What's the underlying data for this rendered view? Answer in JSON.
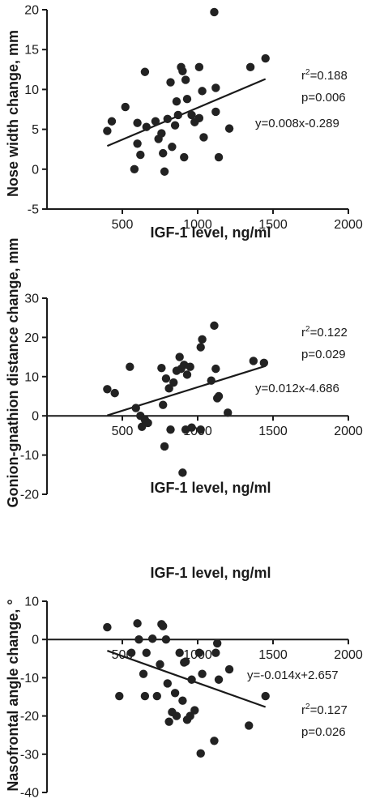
{
  "chart_data": [
    {
      "type": "scatter",
      "xlabel": "IGF-1 level, ng/ml",
      "ylabel": "Nose width change, mm",
      "xlim": [
        0,
        2000
      ],
      "ylim": [
        -5,
        20
      ],
      "x_ticks": [
        "500",
        "1000",
        "1500",
        "2000"
      ],
      "y_ticks": [
        "-5",
        "0",
        "5",
        "10",
        "15",
        "20"
      ],
      "x_axis_position": "bottom",
      "grid": false,
      "annotations": {
        "r2_prefix": "r",
        "r2_sup": "2",
        "r2_value": "=0.188",
        "p": "p=0.006",
        "equation": "y=0.008x-0.289"
      },
      "regression": {
        "slope": 0.008,
        "intercept": -0.289,
        "x_range": [
          400,
          1450
        ]
      },
      "points": [
        {
          "x": 400,
          "y": 4.8
        },
        {
          "x": 430,
          "y": 6.0
        },
        {
          "x": 520,
          "y": 7.8
        },
        {
          "x": 580,
          "y": 0.0
        },
        {
          "x": 600,
          "y": 5.8
        },
        {
          "x": 600,
          "y": 3.2
        },
        {
          "x": 620,
          "y": 1.8
        },
        {
          "x": 650,
          "y": 12.2
        },
        {
          "x": 660,
          "y": 5.3
        },
        {
          "x": 720,
          "y": 6.0
        },
        {
          "x": 740,
          "y": 3.8
        },
        {
          "x": 760,
          "y": 4.5
        },
        {
          "x": 770,
          "y": 2.0
        },
        {
          "x": 780,
          "y": -0.3
        },
        {
          "x": 800,
          "y": 6.3
        },
        {
          "x": 820,
          "y": 10.9
        },
        {
          "x": 830,
          "y": 2.8
        },
        {
          "x": 850,
          "y": 5.5
        },
        {
          "x": 860,
          "y": 8.5
        },
        {
          "x": 870,
          "y": 6.8
        },
        {
          "x": 890,
          "y": 12.8
        },
        {
          "x": 900,
          "y": 12.3
        },
        {
          "x": 910,
          "y": 1.5
        },
        {
          "x": 920,
          "y": 11.2
        },
        {
          "x": 930,
          "y": 8.8
        },
        {
          "x": 960,
          "y": 6.8
        },
        {
          "x": 980,
          "y": 5.9
        },
        {
          "x": 1010,
          "y": 6.4
        },
        {
          "x": 1010,
          "y": 12.8
        },
        {
          "x": 1030,
          "y": 9.8
        },
        {
          "x": 1040,
          "y": 4.0
        },
        {
          "x": 1110,
          "y": 19.7
        },
        {
          "x": 1120,
          "y": 10.2
        },
        {
          "x": 1120,
          "y": 7.2
        },
        {
          "x": 1140,
          "y": 1.5
        },
        {
          "x": 1210,
          "y": 5.1
        },
        {
          "x": 1350,
          "y": 12.8
        },
        {
          "x": 1450,
          "y": 13.9
        }
      ]
    },
    {
      "type": "scatter",
      "xlabel": "IGF-1 level, ng/ml",
      "ylabel": "Gonion-gnathion distance change, mm",
      "xlim": [
        0,
        2000
      ],
      "ylim": [
        -20,
        30
      ],
      "x_ticks": [
        "500",
        "1000",
        "1500",
        "2000"
      ],
      "y_ticks": [
        "-20",
        "-10",
        "0",
        "10",
        "20",
        "30"
      ],
      "x_axis_position": "zero",
      "grid": false,
      "annotations": {
        "r2_prefix": "r",
        "r2_sup": "2",
        "r2_value": "=0.122",
        "p": "p=0.029",
        "equation": "y=0.012x-4.686"
      },
      "regression": {
        "slope": 0.012,
        "intercept": -4.686,
        "x_range": [
          400,
          1450
        ]
      },
      "points": [
        {
          "x": 400,
          "y": 6.8
        },
        {
          "x": 450,
          "y": 5.8
        },
        {
          "x": 550,
          "y": 12.5
        },
        {
          "x": 590,
          "y": 2.0
        },
        {
          "x": 620,
          "y": 0.0
        },
        {
          "x": 630,
          "y": -2.8
        },
        {
          "x": 650,
          "y": -1.0
        },
        {
          "x": 670,
          "y": -1.8
        },
        {
          "x": 760,
          "y": 12.2
        },
        {
          "x": 770,
          "y": 2.8
        },
        {
          "x": 780,
          "y": -7.8
        },
        {
          "x": 790,
          "y": 9.5
        },
        {
          "x": 810,
          "y": 7.0
        },
        {
          "x": 820,
          "y": -3.5
        },
        {
          "x": 840,
          "y": 8.5
        },
        {
          "x": 860,
          "y": 11.5
        },
        {
          "x": 880,
          "y": 15.0
        },
        {
          "x": 890,
          "y": 12.0
        },
        {
          "x": 900,
          "y": -14.5
        },
        {
          "x": 910,
          "y": 13.0
        },
        {
          "x": 920,
          "y": -3.5
        },
        {
          "x": 930,
          "y": 10.5
        },
        {
          "x": 950,
          "y": 12.5
        },
        {
          "x": 960,
          "y": -3.0
        },
        {
          "x": 1020,
          "y": 17.5
        },
        {
          "x": 1020,
          "y": -3.5
        },
        {
          "x": 1030,
          "y": 19.5
        },
        {
          "x": 1090,
          "y": 9.0
        },
        {
          "x": 1110,
          "y": 23.0
        },
        {
          "x": 1120,
          "y": 12.0
        },
        {
          "x": 1130,
          "y": 4.5
        },
        {
          "x": 1140,
          "y": 5.0
        },
        {
          "x": 1200,
          "y": 0.8
        },
        {
          "x": 1370,
          "y": 14.0
        },
        {
          "x": 1440,
          "y": 13.5
        }
      ]
    },
    {
      "type": "scatter",
      "title": "IGF-1 level, ng/ml",
      "xlabel": "",
      "ylabel": "Nasofrontal angle change, °",
      "xlim": [
        0,
        2000
      ],
      "ylim": [
        -40,
        10
      ],
      "x_ticks": [
        "500",
        "1000",
        "1500",
        "2000"
      ],
      "y_ticks": [
        "-40",
        "-30",
        "-20",
        "-10",
        "0",
        "10"
      ],
      "x_axis_position": "zero",
      "grid": false,
      "annotations": {
        "equation": "y=-0.014x+2.657",
        "r2_prefix": "r",
        "r2_sup": "2",
        "r2_value": "=0.127",
        "p": "p=0.026"
      },
      "regression": {
        "slope": -0.014,
        "intercept": 2.657,
        "x_range": [
          400,
          1450
        ]
      },
      "points": [
        {
          "x": 400,
          "y": 3.2
        },
        {
          "x": 480,
          "y": -14.8
        },
        {
          "x": 560,
          "y": -3.5
        },
        {
          "x": 600,
          "y": 4.2
        },
        {
          "x": 610,
          "y": 0.0
        },
        {
          "x": 640,
          "y": -9.0
        },
        {
          "x": 650,
          "y": -14.8
        },
        {
          "x": 660,
          "y": -3.5
        },
        {
          "x": 700,
          "y": 0.2
        },
        {
          "x": 730,
          "y": -14.8
        },
        {
          "x": 750,
          "y": -6.5
        },
        {
          "x": 760,
          "y": 4.0
        },
        {
          "x": 770,
          "y": 3.5
        },
        {
          "x": 790,
          "y": 0.0
        },
        {
          "x": 800,
          "y": -11.5
        },
        {
          "x": 810,
          "y": -21.5
        },
        {
          "x": 830,
          "y": -19.0
        },
        {
          "x": 850,
          "y": -14.0
        },
        {
          "x": 860,
          "y": -20.0
        },
        {
          "x": 880,
          "y": -3.5
        },
        {
          "x": 900,
          "y": -16.0
        },
        {
          "x": 910,
          "y": -6.0
        },
        {
          "x": 920,
          "y": -5.8
        },
        {
          "x": 930,
          "y": -21.0
        },
        {
          "x": 950,
          "y": -20.0
        },
        {
          "x": 960,
          "y": -10.5
        },
        {
          "x": 980,
          "y": -18.5
        },
        {
          "x": 1010,
          "y": -3.5
        },
        {
          "x": 1020,
          "y": -29.8
        },
        {
          "x": 1030,
          "y": -9.0
        },
        {
          "x": 1110,
          "y": -26.5
        },
        {
          "x": 1120,
          "y": -3.5
        },
        {
          "x": 1130,
          "y": -1.0
        },
        {
          "x": 1140,
          "y": -10.5
        },
        {
          "x": 1210,
          "y": -7.8
        },
        {
          "x": 1340,
          "y": -22.5
        },
        {
          "x": 1450,
          "y": -14.8
        }
      ]
    }
  ]
}
